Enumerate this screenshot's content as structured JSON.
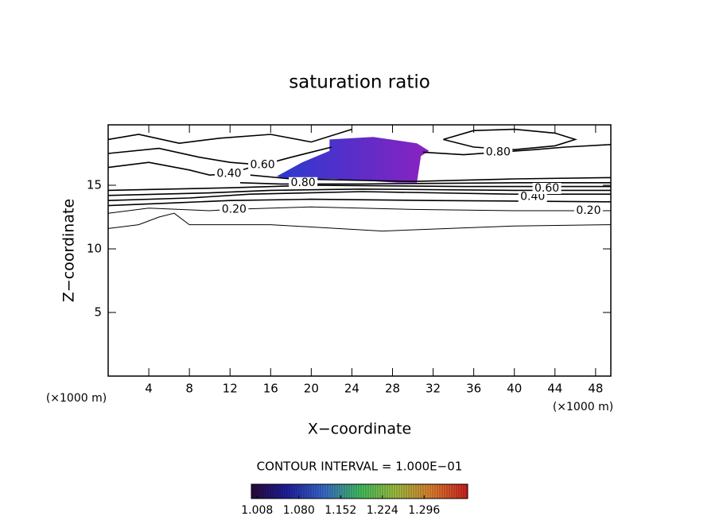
{
  "chart_data": {
    "type": "contour",
    "title": "saturation ratio",
    "x_label": "X−coordinate",
    "y_label": "Z−coordinate",
    "x_units": "(×1000 m)",
    "y_units": "(×1000 m)",
    "note": "CONTOUR INTERVAL = 1.000E−01",
    "xlim": [
      0,
      49.5
    ],
    "ylim": [
      0,
      19.75
    ],
    "xticks": [
      4,
      8,
      12,
      16,
      20,
      24,
      28,
      32,
      36,
      40,
      44,
      48
    ],
    "yticks": [
      5,
      10,
      15
    ],
    "line_color": "#000000",
    "contours": [
      {
        "level": 0.1,
        "x": [
          0,
          3,
          5,
          6.5,
          8,
          16,
          27,
          40,
          49.5
        ],
        "y": [
          11.6,
          11.9,
          12.5,
          12.8,
          11.9,
          11.9,
          11.4,
          11.8,
          11.9
        ]
      },
      {
        "level": 0.2,
        "x": [
          0,
          4,
          10,
          12,
          20,
          30,
          40,
          49.5
        ],
        "y": [
          12.8,
          13.2,
          13.0,
          13.1,
          13.3,
          13.1,
          13.0,
          13.0
        ]
      },
      {
        "level": 0.3,
        "x": [
          0,
          6,
          12,
          20,
          32,
          49.5
        ],
        "y": [
          13.4,
          13.6,
          13.8,
          13.9,
          13.8,
          13.7
        ]
      },
      {
        "level": 0.4,
        "x": [
          0,
          8,
          14,
          25,
          40,
          49.5
        ],
        "y": [
          13.8,
          14.0,
          14.3,
          14.5,
          14.3,
          14.3
        ]
      },
      {
        "level": 0.5,
        "x": [
          0,
          10,
          16,
          25,
          40,
          49.5
        ],
        "y": [
          14.2,
          14.4,
          14.6,
          14.7,
          14.6,
          14.6
        ]
      },
      {
        "level": 0.6,
        "x": [
          0,
          12,
          20,
          35,
          49.5
        ],
        "y": [
          14.6,
          14.8,
          15.0,
          14.9,
          14.9
        ]
      },
      {
        "level": 0.7,
        "x": [
          13,
          17,
          25,
          40,
          49.5
        ],
        "y": [
          15.2,
          15.1,
          15.1,
          15.2,
          15.2
        ]
      },
      {
        "level": 0.8,
        "x": [
          14,
          18,
          30,
          40,
          49.5
        ],
        "y": [
          15.8,
          15.5,
          15.3,
          15.5,
          15.6
        ]
      },
      {
        "level": 0.4,
        "x": [
          0,
          4,
          8,
          10,
          11.9,
          14,
          16
        ],
        "y": [
          16.4,
          16.8,
          16.2,
          15.8,
          15.9,
          16.4,
          17.0
        ]
      },
      {
        "level": 0.6,
        "x": [
          0,
          5,
          9,
          12,
          15.2,
          18,
          22
        ],
        "y": [
          17.5,
          17.9,
          17.2,
          16.8,
          16.6,
          17.2,
          18.0
        ]
      },
      {
        "level": 0.6,
        "x": [
          0,
          3,
          7,
          11,
          16,
          20,
          24
        ],
        "y": [
          18.6,
          19.0,
          18.3,
          18.7,
          19.0,
          18.4,
          19.4
        ]
      },
      {
        "level": 0.8,
        "x": [
          33,
          36,
          40,
          44,
          46,
          44,
          40,
          36,
          33
        ],
        "y": [
          18.6,
          19.3,
          19.4,
          19.1,
          18.6,
          18.1,
          17.8,
          18.0,
          18.6
        ]
      },
      {
        "level": 0.8,
        "x": [
          31,
          35,
          38.4,
          42,
          45,
          49.5
        ],
        "y": [
          17.6,
          17.4,
          17.6,
          17.8,
          18.0,
          18.2
        ]
      }
    ],
    "contour_labels": [
      {
        "value": 0.2,
        "label": "0.20",
        "x": 12.4,
        "y": 13.1
      },
      {
        "value": 0.2,
        "label": "0.20",
        "x": 47.3,
        "y": 13.0
      },
      {
        "value": 0.4,
        "label": "0.40",
        "x": 41.8,
        "y": 14.1
      },
      {
        "value": 0.4,
        "label": "0.40",
        "x": 11.9,
        "y": 15.9
      },
      {
        "value": 0.6,
        "label": "0.60",
        "x": 43.2,
        "y": 14.75
      },
      {
        "value": 0.6,
        "label": "0.60",
        "x": 15.2,
        "y": 16.6
      },
      {
        "value": 0.8,
        "label": "0.80",
        "x": 19.2,
        "y": 15.2
      },
      {
        "value": 0.8,
        "label": "0.80",
        "x": 38.4,
        "y": 17.6
      }
    ],
    "shaded_region": {
      "x": [
        16.6,
        19.1,
        21.8,
        21.8,
        26.1,
        30.4,
        31.6,
        30.8,
        30.4,
        28.5,
        22.2,
        17.5
      ],
      "y": [
        15.7,
        16.8,
        17.7,
        18.6,
        18.8,
        18.3,
        17.7,
        17.3,
        15.2,
        15.2,
        15.5,
        15.5
      ],
      "colors": [
        "#2a3ad0",
        "#8a22c0"
      ]
    },
    "colorbar_lim": [
      0.998,
      1.371
    ],
    "colorbar_ticks": [
      1.008,
      {
        "value": 1.08,
        "label": "1.080"
      },
      1.152,
      1.224,
      1.296
    ],
    "colorbar_colors": [
      "#2a0a3a",
      "#2020a0",
      "#3a6ad0",
      "#40c060",
      "#a0c040",
      "#e08030",
      "#d02020"
    ]
  }
}
